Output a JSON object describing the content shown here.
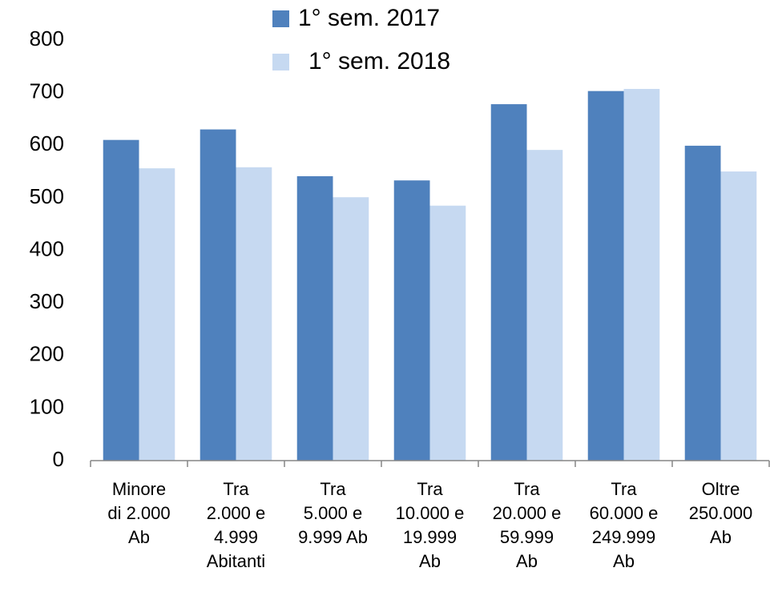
{
  "chart_data": {
    "type": "bar",
    "categories": [
      "Minore\ndi 2.000\nAb",
      "Tra\n2.000 e\n4.999\nAbitanti",
      "Tra\n5.000 e\n9.999 Ab",
      "Tra\n10.000 e\n19.999\nAb",
      "Tra\n20.000 e\n59.999\nAb",
      "Tra\n60.000 e\n249.999\nAb",
      "Oltre\n250.000\nAb"
    ],
    "series": [
      {
        "name": "1° sem. 2017",
        "color": "#4f81bd",
        "values": [
          610,
          630,
          541,
          533,
          678,
          703,
          599
        ]
      },
      {
        "name": "1° sem. 2018",
        "color": "#c6d9f1",
        "values": [
          556,
          558,
          501,
          485,
          591,
          707,
          550
        ]
      }
    ],
    "ylim": [
      0,
      800
    ],
    "yticks": [
      0,
      100,
      200,
      300,
      400,
      500,
      600,
      700,
      800
    ],
    "grid": false
  }
}
